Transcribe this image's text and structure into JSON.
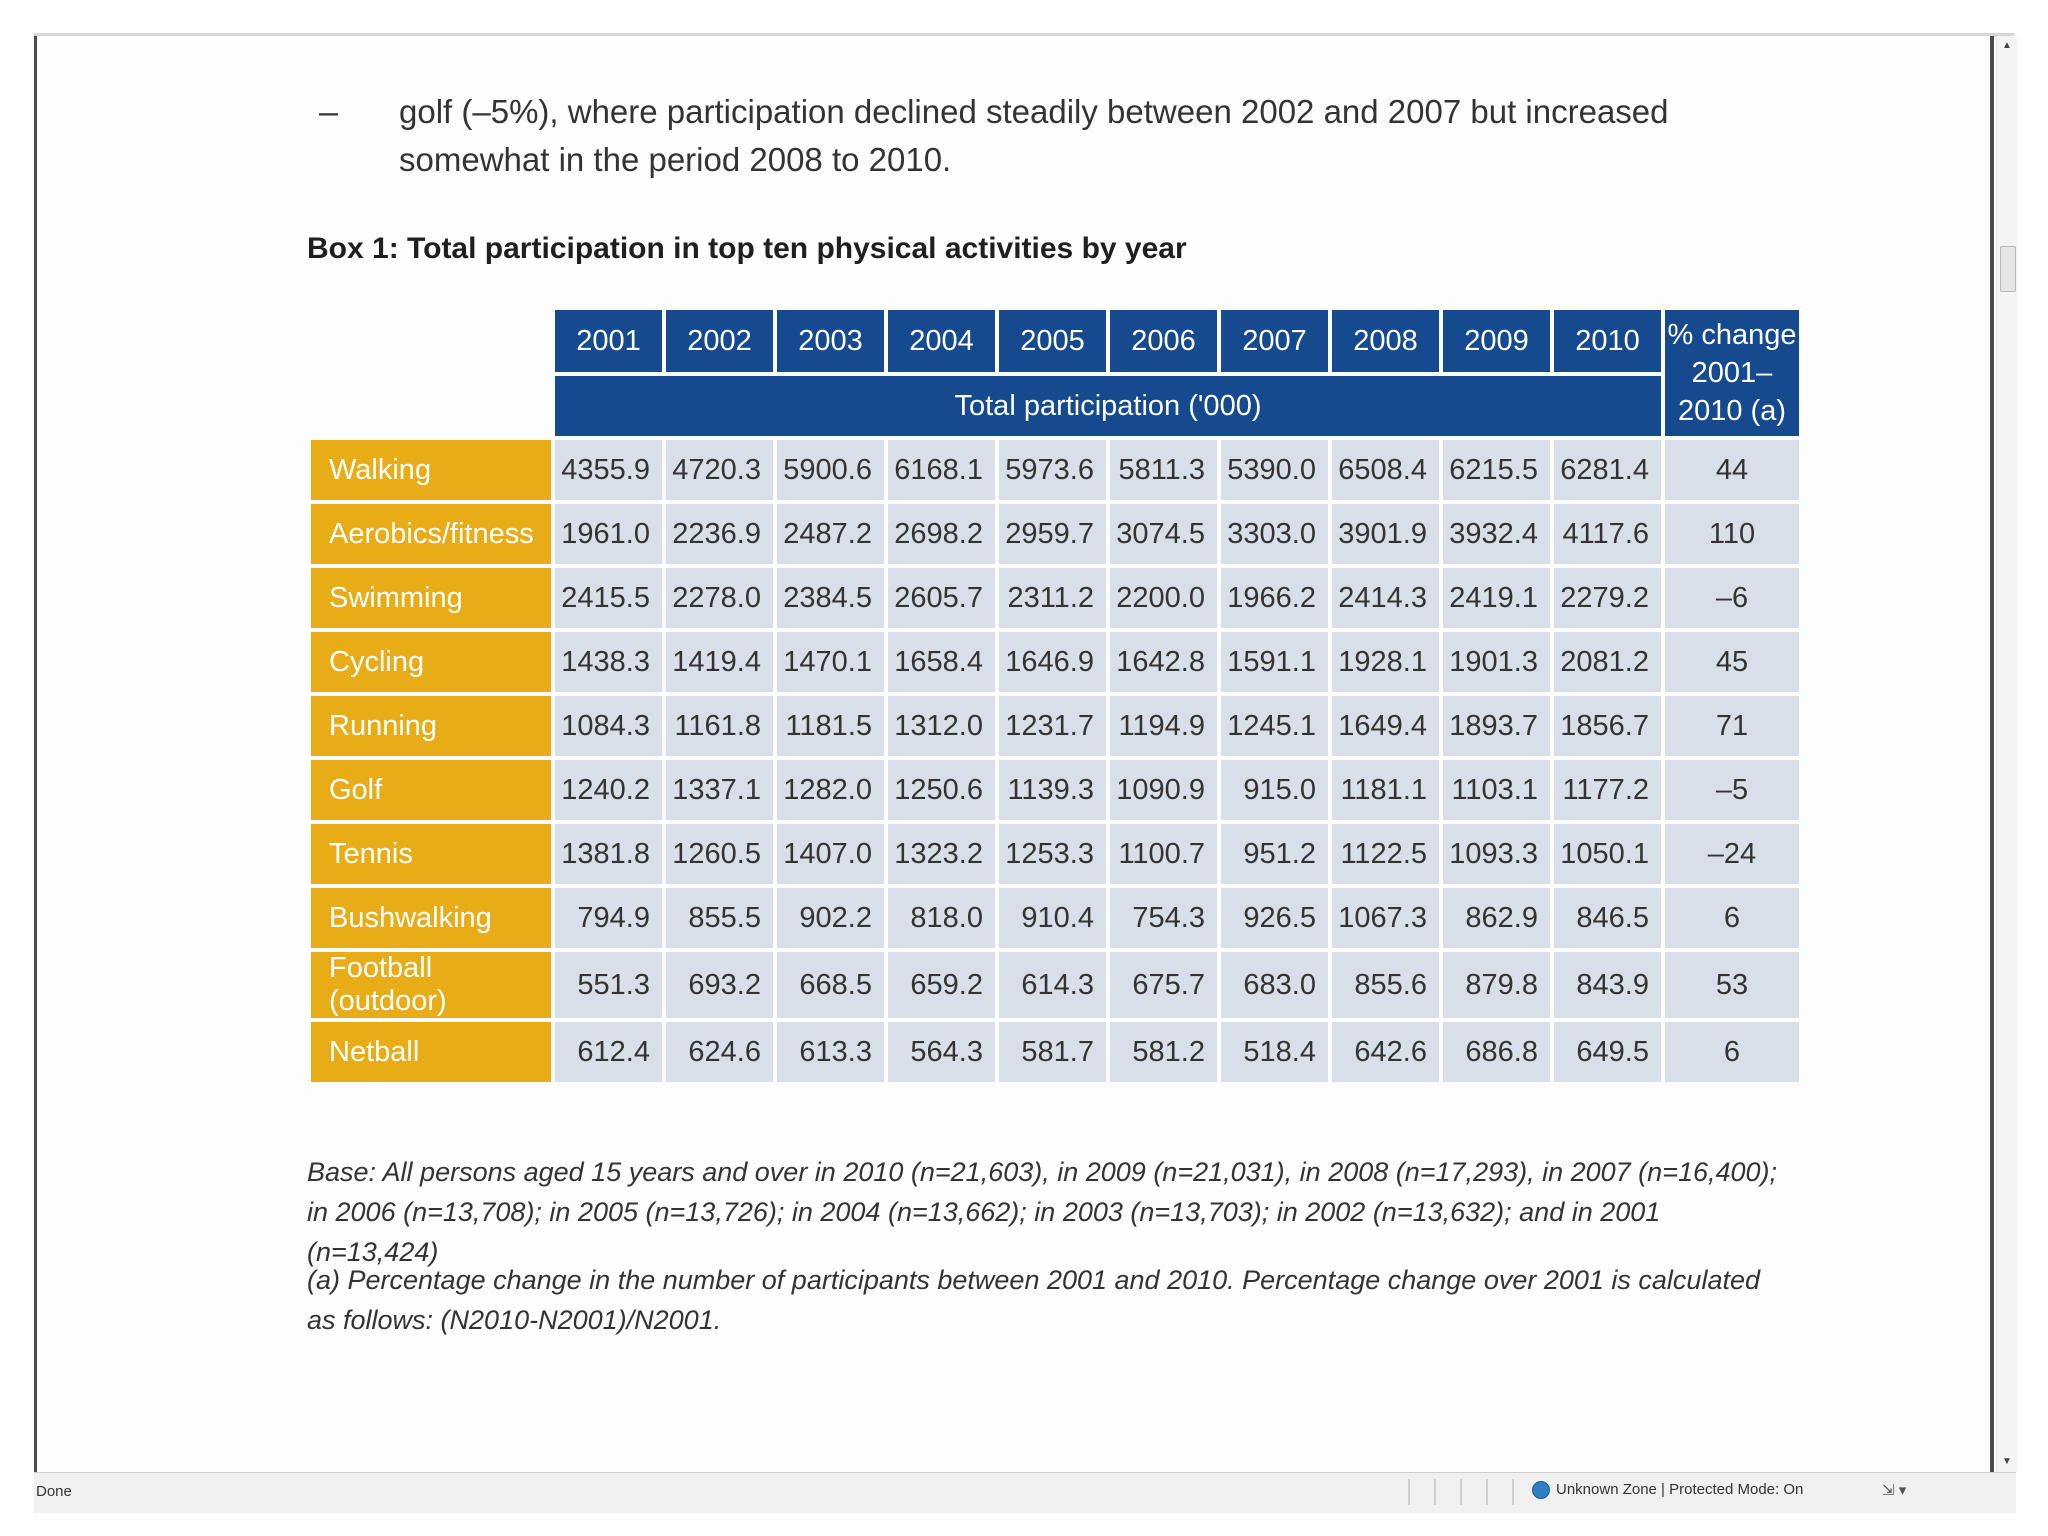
{
  "bullet": {
    "dash": "–",
    "text": "golf (–5%), where participation declined steadily between 2002 and 2007 but increased somewhat in the period 2008 to 2010."
  },
  "box_title": "Box 1: Total participation in top ten physical activities by year",
  "table": {
    "years": [
      "2001",
      "2002",
      "2003",
      "2004",
      "2005",
      "2006",
      "2007",
      "2008",
      "2009",
      "2010"
    ],
    "pct_header": [
      "% change",
      "2001–",
      "2010 (a)"
    ],
    "subheader": "Total participation ('000)",
    "rows": [
      {
        "activity": "Walking",
        "values": [
          "4355.9",
          "4720.3",
          "5900.6",
          "6168.1",
          "5973.6",
          "5811.3",
          "5390.0",
          "6508.4",
          "6215.5",
          "6281.4"
        ],
        "pct": "44"
      },
      {
        "activity": "Aerobics/fitness",
        "values": [
          "1961.0",
          "2236.9",
          "2487.2",
          "2698.2",
          "2959.7",
          "3074.5",
          "3303.0",
          "3901.9",
          "3932.4",
          "4117.6"
        ],
        "pct": "110"
      },
      {
        "activity": "Swimming",
        "values": [
          "2415.5",
          "2278.0",
          "2384.5",
          "2605.7",
          "2311.2",
          "2200.0",
          "1966.2",
          "2414.3",
          "2419.1",
          "2279.2"
        ],
        "pct": "–6"
      },
      {
        "activity": "Cycling",
        "values": [
          "1438.3",
          "1419.4",
          "1470.1",
          "1658.4",
          "1646.9",
          "1642.8",
          "1591.1",
          "1928.1",
          "1901.3",
          "2081.2"
        ],
        "pct": "45"
      },
      {
        "activity": "Running",
        "values": [
          "1084.3",
          "1161.8",
          "1181.5",
          "1312.0",
          "1231.7",
          "1194.9",
          "1245.1",
          "1649.4",
          "1893.7",
          "1856.7"
        ],
        "pct": "71"
      },
      {
        "activity": "Golf",
        "values": [
          "1240.2",
          "1337.1",
          "1282.0",
          "1250.6",
          "1139.3",
          "1090.9",
          "915.0",
          "1181.1",
          "1103.1",
          "1177.2"
        ],
        "pct": "–5"
      },
      {
        "activity": "Tennis",
        "values": [
          "1381.8",
          "1260.5",
          "1407.0",
          "1323.2",
          "1253.3",
          "1100.7",
          "951.2",
          "1122.5",
          "1093.3",
          "1050.1"
        ],
        "pct": "–24"
      },
      {
        "activity": "Bushwalking",
        "values": [
          "794.9",
          "855.5",
          "902.2",
          "818.0",
          "910.4",
          "754.3",
          "926.5",
          "1067.3",
          "862.9",
          "846.5"
        ],
        "pct": "6"
      },
      {
        "activity": "Football (outdoor)",
        "values": [
          "551.3",
          "693.2",
          "668.5",
          "659.2",
          "614.3",
          "675.7",
          "683.0",
          "855.6",
          "879.8",
          "843.9"
        ],
        "pct": "53"
      },
      {
        "activity": "Netball",
        "values": [
          "612.4",
          "624.6",
          "613.3",
          "564.3",
          "581.7",
          "581.2",
          "518.4",
          "642.6",
          "686.8",
          "649.5"
        ],
        "pct": "6"
      }
    ]
  },
  "notes": {
    "base": "Base: All persons aged 15 years and over in 2010 (n=21,603), in 2009 (n=21,031), in 2008 (n=17,293), in 2007 (n=16,400); in 2006 (n=13,708); in 2005 (n=13,726); in 2004 (n=13,662); in 2003 (n=13,703); in 2002 (n=13,632); and in 2001 (n=13,424)",
    "footnote": "(a) Percentage change in the number of participants between 2001 and 2010. Percentage change over 2001 is calculated as follows: (N2010-N2001)/N2001."
  },
  "statusbar": {
    "left": "Done",
    "zone": "Unknown Zone | Protected Mode: On",
    "zoom_icon": "⇲ ▾"
  },
  "colors": {
    "header_blue": "#154a8f",
    "activity_gold": "#e8ac16",
    "cell_grey": "#d9dfe9"
  }
}
